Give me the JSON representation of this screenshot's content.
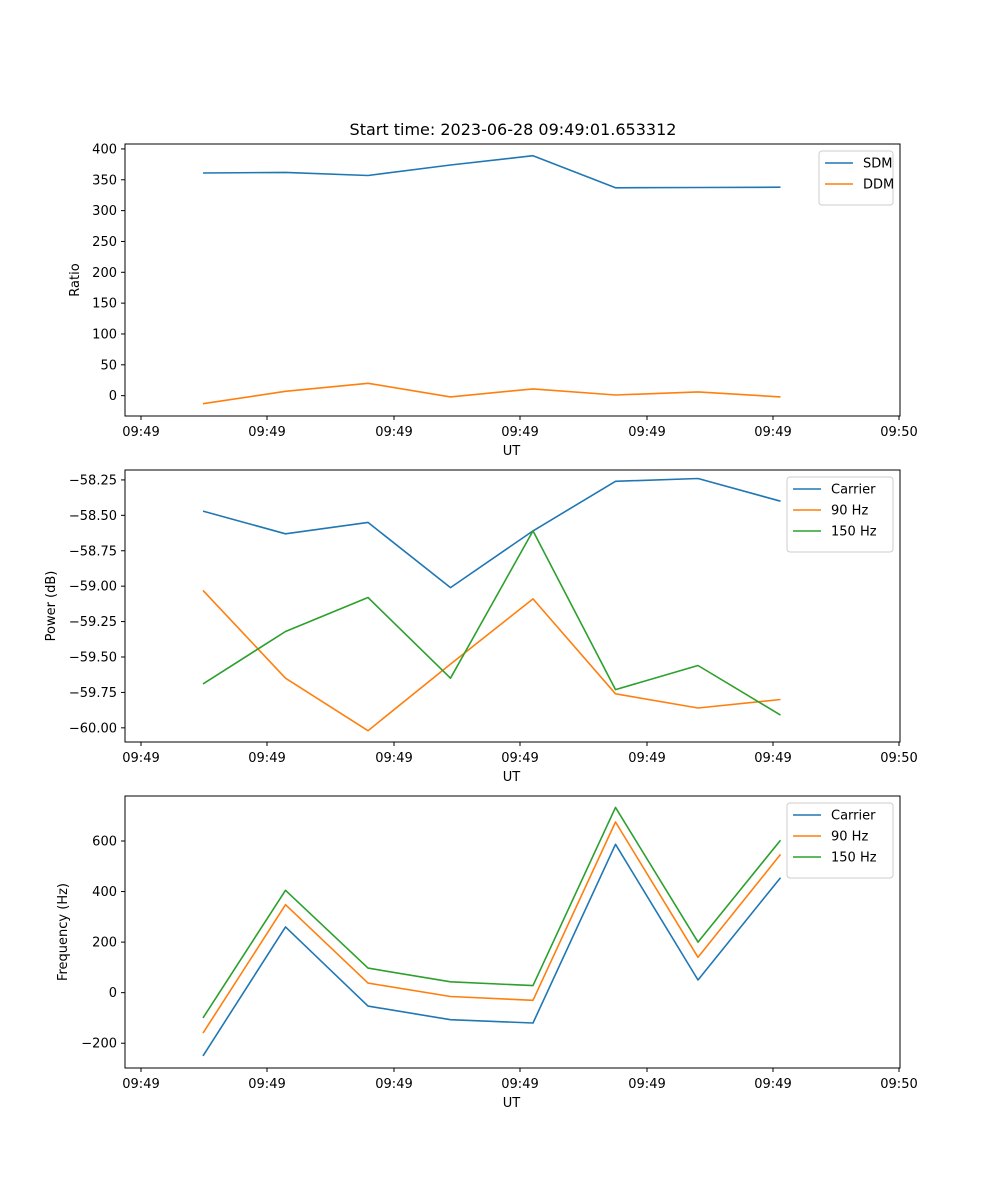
{
  "figure_title": "Start time: 2023-06-28 09:49:01.653312",
  "colors": {
    "c0": "#1f77b4",
    "c1": "#ff7f0e",
    "c2": "#2ca02c"
  },
  "chart_data": [
    {
      "type": "line",
      "title": "Start time: 2023-06-28 09:49:01.653312",
      "xlabel": "UT",
      "ylabel": "Ratio",
      "x_tick_labels": [
        "09:49",
        "09:49",
        "09:49",
        "09:49",
        "09:49",
        "09:49",
        "09:49"
      ],
      "x_tick_last_label": "09:50",
      "y_ticks": [
        0,
        50,
        100,
        150,
        200,
        250,
        300,
        350,
        400
      ],
      "y_tick_labels": [
        "0",
        "50",
        "100",
        "150",
        "200",
        "250",
        "300",
        "350",
        "400"
      ],
      "ylim": [
        -33,
        408
      ],
      "grid": false,
      "legend": "top-right",
      "series": [
        {
          "name": "SDM",
          "color": "#1f77b4",
          "values": [
            361,
            362,
            357,
            374,
            389,
            337,
            337.5,
            338
          ]
        },
        {
          "name": "DDM",
          "color": "#ff7f0e",
          "values": [
            -13,
            7,
            20,
            -2,
            11,
            1,
            6,
            -2
          ]
        }
      ]
    },
    {
      "type": "line",
      "xlabel": "UT",
      "ylabel": "Power (dB)",
      "x_tick_labels": [
        "09:49",
        "09:49",
        "09:49",
        "09:49",
        "09:49",
        "09:49",
        "09:49"
      ],
      "x_tick_last_label": "09:50",
      "y_ticks": [
        -60.0,
        -59.75,
        -59.5,
        -59.25,
        -59.0,
        -58.75,
        -58.5,
        -58.25
      ],
      "y_tick_labels": [
        "−60.00",
        "−59.75",
        "−59.50",
        "−59.25",
        "−59.00",
        "−58.75",
        "−58.50",
        "−58.25"
      ],
      "ylim": [
        -60.1,
        -58.18
      ],
      "grid": false,
      "legend": "top-right",
      "series": [
        {
          "name": "Carrier",
          "color": "#1f77b4",
          "values": [
            -58.47,
            -58.63,
            -58.55,
            -59.01,
            -58.61,
            -58.26,
            -58.24,
            -58.4
          ]
        },
        {
          "name": "90 Hz",
          "color": "#ff7f0e",
          "values": [
            -59.03,
            -59.65,
            -60.02,
            -59.55,
            -59.09,
            -59.76,
            -59.86,
            -59.8
          ]
        },
        {
          "name": "150 Hz",
          "color": "#2ca02c",
          "values": [
            -59.69,
            -59.32,
            -59.08,
            -59.65,
            -58.61,
            -59.73,
            -59.56,
            -59.91
          ]
        }
      ]
    },
    {
      "type": "line",
      "xlabel": "UT",
      "ylabel": "Frequency (Hz)",
      "x_tick_labels": [
        "09:49",
        "09:49",
        "09:49",
        "09:49",
        "09:49",
        "09:49",
        "09:49"
      ],
      "x_tick_last_label": "09:50",
      "y_ticks": [
        -200,
        0,
        200,
        400,
        600
      ],
      "y_tick_labels": [
        "−200",
        "0",
        "200",
        "400",
        "600"
      ],
      "ylim": [
        -298,
        778
      ],
      "grid": false,
      "legend": "top-right",
      "series": [
        {
          "name": "Carrier",
          "color": "#1f77b4",
          "values": [
            -250,
            260,
            -53,
            -107,
            -120,
            587,
            50,
            455
          ]
        },
        {
          "name": "90 Hz",
          "color": "#ff7f0e",
          "values": [
            -160,
            348,
            38,
            -15,
            -30,
            675,
            140,
            547
          ]
        },
        {
          "name": "150 Hz",
          "color": "#2ca02c",
          "values": [
            -100,
            405,
            97,
            43,
            28,
            733,
            200,
            603
          ]
        }
      ]
    }
  ]
}
